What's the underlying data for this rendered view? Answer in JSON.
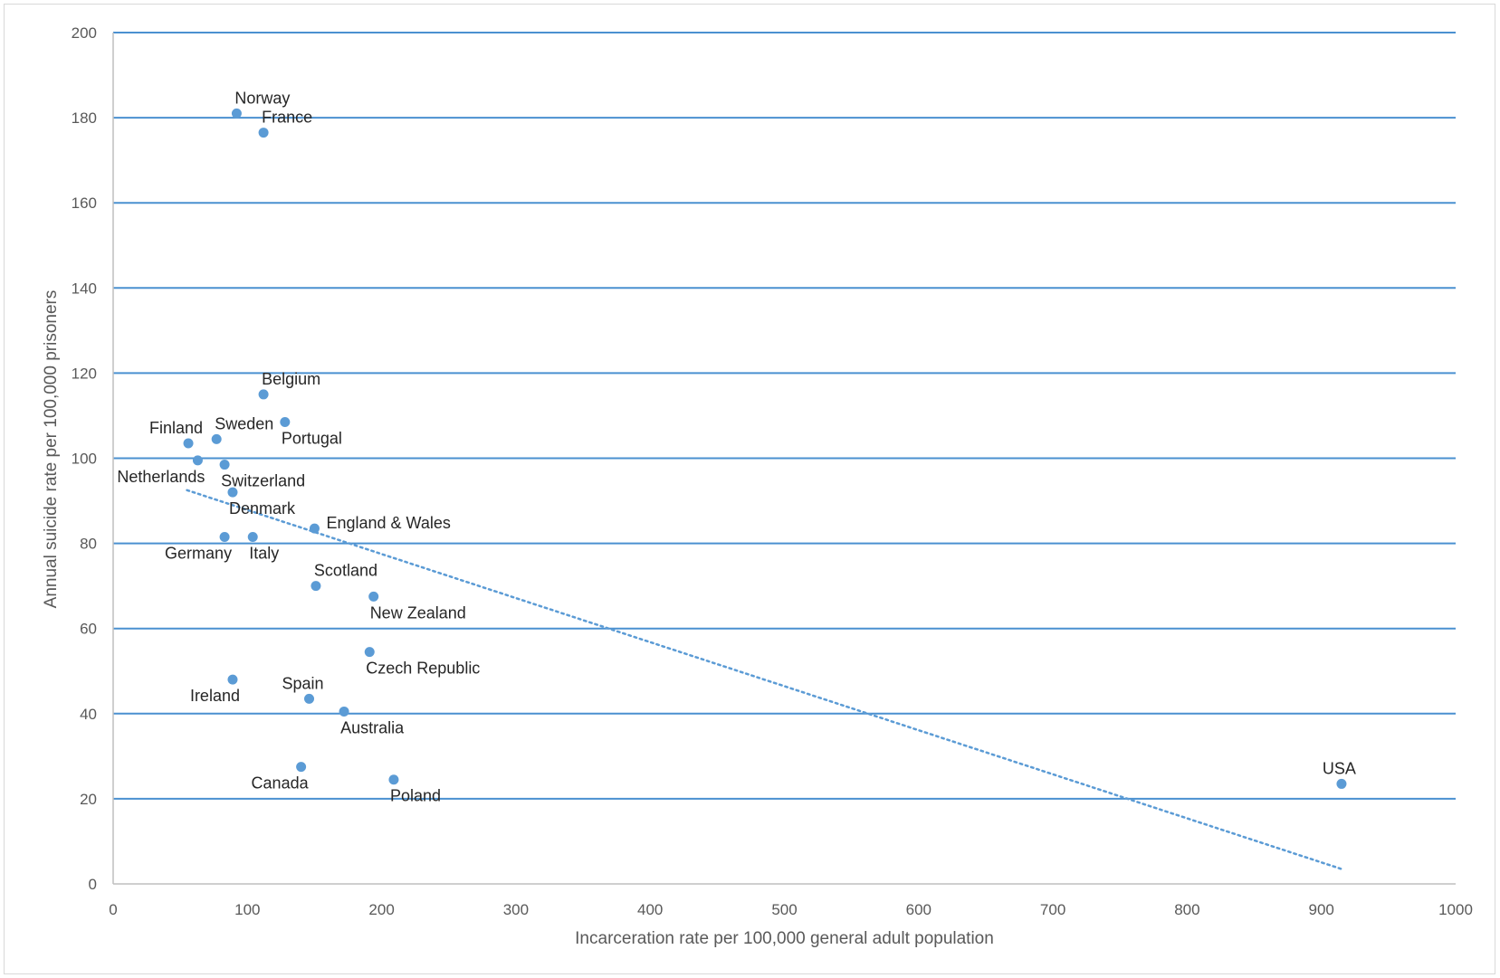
{
  "chart_data": {
    "type": "scatter",
    "title": "",
    "xlabel": "Incarceration rate per 100,000 general adult population",
    "ylabel": "Annual suicide rate per 100,000 prisoners",
    "xlim": [
      0,
      1000
    ],
    "ylim": [
      0,
      200
    ],
    "x_ticks": [
      0,
      100,
      200,
      300,
      400,
      500,
      600,
      700,
      800,
      900,
      1000
    ],
    "y_ticks": [
      0,
      20,
      40,
      60,
      80,
      100,
      120,
      140,
      160,
      180,
      200
    ],
    "grid": "horizontal",
    "legend": "none",
    "point_color": "#5b9bd5",
    "grid_color": "#4a90d0",
    "trendline": {
      "style": "dotted",
      "color": "#5b9bd5",
      "x": [
        55,
        915
      ],
      "y": [
        92.5,
        3.5
      ]
    },
    "points": [
      {
        "label": "Norway",
        "x": 92,
        "y": 181,
        "label_pos": "above-right"
      },
      {
        "label": "France",
        "x": 112,
        "y": 176.5,
        "label_pos": "above-right"
      },
      {
        "label": "Belgium",
        "x": 112,
        "y": 115,
        "label_pos": "above-right"
      },
      {
        "label": "Portugal",
        "x": 128,
        "y": 108.5,
        "label_pos": "below-right"
      },
      {
        "label": "Sweden",
        "x": 77,
        "y": 104.5,
        "label_pos": "above-right"
      },
      {
        "label": "Finland",
        "x": 56,
        "y": 103.5,
        "label_pos": "above-left"
      },
      {
        "label": "Netherlands",
        "x": 63,
        "y": 99.5,
        "label_pos": "below-left"
      },
      {
        "label": "Switzerland",
        "x": 83,
        "y": 98.5,
        "label_pos": "below-right"
      },
      {
        "label": "Denmark",
        "x": 89,
        "y": 92,
        "label_pos": "below-right"
      },
      {
        "label": "England & Wales",
        "x": 150,
        "y": 83.5,
        "label_pos": "right"
      },
      {
        "label": "Germany",
        "x": 83,
        "y": 81.5,
        "label_pos": "below-left"
      },
      {
        "label": "Italy",
        "x": 104,
        "y": 81.5,
        "label_pos": "below-right"
      },
      {
        "label": "Scotland",
        "x": 151,
        "y": 70,
        "label_pos": "above-right"
      },
      {
        "label": "New Zealand",
        "x": 194,
        "y": 67.5,
        "label_pos": "below-right"
      },
      {
        "label": "Czech Republic",
        "x": 191,
        "y": 54.5,
        "label_pos": "below-right"
      },
      {
        "label": "Ireland",
        "x": 89,
        "y": 48,
        "label_pos": "below-left"
      },
      {
        "label": "Spain",
        "x": 146,
        "y": 43.5,
        "label_pos": "above-left"
      },
      {
        "label": "Australia",
        "x": 172,
        "y": 40.5,
        "label_pos": "below-right"
      },
      {
        "label": "Canada",
        "x": 140,
        "y": 27.5,
        "label_pos": "below-left"
      },
      {
        "label": "Poland",
        "x": 209,
        "y": 24.5,
        "label_pos": "below-right"
      },
      {
        "label": "USA",
        "x": 915,
        "y": 23.5,
        "label_pos": "above-left"
      }
    ]
  }
}
